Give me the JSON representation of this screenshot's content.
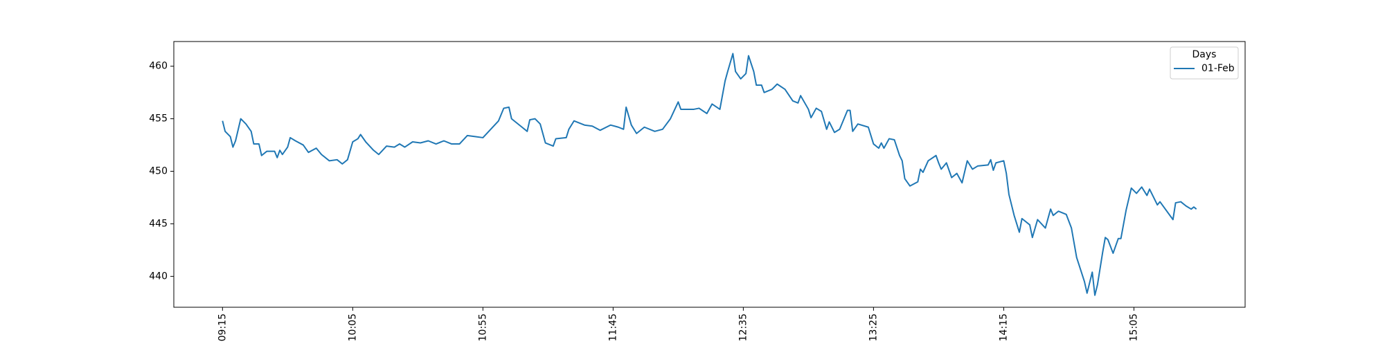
{
  "chart_data": {
    "type": "line",
    "x": [
      0,
      1,
      3,
      4,
      5,
      7,
      9,
      11,
      12,
      14,
      15,
      17,
      20,
      21,
      22,
      23,
      25,
      26,
      28,
      31,
      33,
      36,
      38,
      41,
      44,
      46,
      48,
      50,
      52,
      53,
      55,
      58,
      60,
      63,
      66,
      68,
      70,
      73,
      76,
      79,
      82,
      85,
      88,
      91,
      94,
      97,
      100,
      103,
      106,
      108,
      110,
      111,
      115,
      117,
      118,
      120,
      122,
      124,
      127,
      128,
      132,
      133,
      135,
      139,
      142,
      145,
      149,
      152,
      154,
      155,
      157,
      159,
      162,
      166,
      169,
      172,
      175,
      176,
      181,
      183,
      186,
      188,
      191,
      193,
      194,
      196,
      197,
      199,
      201,
      202,
      204,
      205,
      207,
      208,
      211,
      213,
      216,
      219,
      221,
      222,
      225,
      226,
      228,
      230,
      232,
      233,
      235,
      237,
      240,
      241,
      242,
      244,
      248,
      250,
      252,
      253,
      254,
      256,
      258,
      260,
      261,
      262,
      264,
      267,
      268,
      269,
      271,
      274,
      275,
      276,
      278,
      280,
      282,
      284,
      286,
      288,
      290,
      294,
      295,
      296,
      297,
      300,
      301,
      302,
      304,
      306,
      307,
      310,
      311,
      313,
      316,
      318,
      319,
      321,
      324,
      326,
      328,
      331,
      332,
      334,
      335,
      336,
      338,
      339,
      340,
      342,
      344,
      345,
      347,
      349,
      351,
      353,
      355,
      356,
      359,
      360,
      365,
      366,
      368,
      370,
      372,
      373,
      374
    ],
    "series": [
      {
        "name": "01-Feb",
        "color": "#1f77b4",
        "values": [
          454.8,
          453.8,
          453.3,
          452.3,
          452.9,
          455.0,
          454.5,
          453.8,
          452.6,
          452.6,
          451.5,
          451.9,
          451.9,
          451.3,
          452.0,
          451.6,
          452.3,
          453.2,
          452.9,
          452.5,
          451.8,
          452.2,
          451.6,
          451.0,
          451.1,
          450.7,
          451.1,
          452.8,
          453.1,
          453.5,
          452.8,
          452.0,
          451.6,
          452.4,
          452.3,
          452.6,
          452.3,
          452.8,
          452.7,
          452.9,
          452.6,
          452.9,
          452.6,
          452.6,
          453.4,
          453.3,
          453.2,
          454.0,
          454.8,
          456.0,
          456.1,
          455.0,
          454.2,
          453.8,
          454.9,
          455.0,
          454.5,
          452.7,
          452.4,
          453.1,
          453.2,
          454.0,
          454.8,
          454.4,
          454.3,
          453.9,
          454.4,
          454.2,
          454.0,
          456.1,
          454.4,
          453.6,
          454.2,
          453.8,
          454.0,
          455.0,
          456.6,
          455.9,
          455.9,
          456.0,
          455.5,
          456.4,
          455.9,
          458.6,
          459.5,
          461.2,
          459.5,
          458.8,
          459.3,
          461.0,
          459.5,
          458.2,
          458.2,
          457.5,
          457.8,
          458.3,
          457.8,
          456.7,
          456.5,
          457.2,
          455.9,
          455.1,
          456.0,
          455.7,
          454.0,
          454.7,
          453.7,
          454.0,
          455.8,
          455.8,
          453.8,
          454.5,
          454.2,
          452.6,
          452.2,
          452.7,
          452.2,
          453.1,
          453.0,
          451.5,
          451.0,
          449.3,
          448.6,
          449.0,
          450.2,
          449.9,
          451.0,
          451.5,
          450.8,
          450.2,
          450.8,
          449.4,
          449.8,
          448.9,
          451.0,
          450.2,
          450.5,
          450.6,
          451.1,
          450.1,
          450.8,
          451.0,
          449.8,
          447.8,
          445.8,
          444.2,
          445.5,
          444.9,
          443.7,
          445.4,
          444.6,
          446.4,
          445.8,
          446.2,
          445.9,
          444.6,
          441.8,
          439.5,
          438.4,
          440.4,
          438.2,
          439.2,
          442.3,
          443.7,
          443.5,
          442.2,
          443.6,
          443.6,
          446.3,
          448.4,
          447.9,
          448.5,
          447.7,
          448.3,
          446.8,
          447.1,
          445.4,
          447.0,
          447.1,
          446.7,
          446.4,
          446.6,
          446.4
        ]
      }
    ],
    "xlim": [
      -18.7,
      392.7
    ],
    "xticks": [
      {
        "value": 0,
        "label": "09:15"
      },
      {
        "value": 50,
        "label": "10:05"
      },
      {
        "value": 100,
        "label": "10:55"
      },
      {
        "value": 150,
        "label": "11:45"
      },
      {
        "value": 200,
        "label": "12:35"
      },
      {
        "value": 250,
        "label": "13:25"
      },
      {
        "value": 300,
        "label": "14:15"
      },
      {
        "value": 350,
        "label": "15:05"
      }
    ],
    "ylim": [
      437.06,
      462.35
    ],
    "yticks": [
      440,
      445,
      450,
      455,
      460
    ],
    "legend": "upper right",
    "legend_title": "Days"
  }
}
